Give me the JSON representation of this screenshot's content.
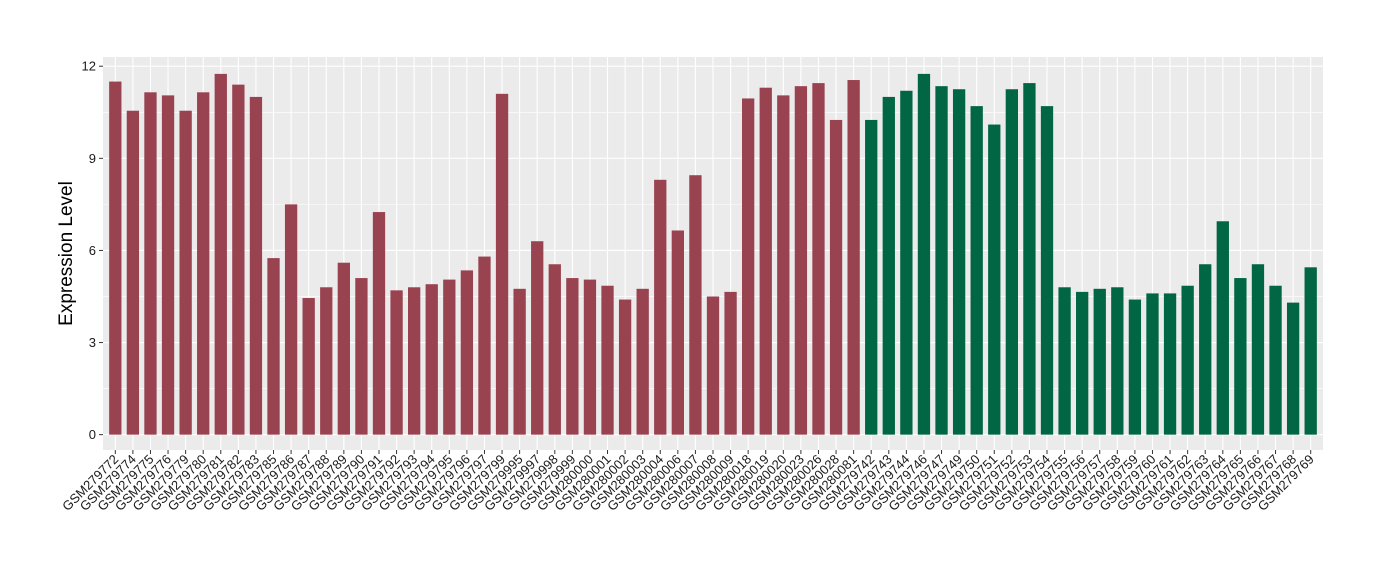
{
  "chart_data": {
    "type": "bar",
    "ylabel": "Expression Level",
    "xlabel": "",
    "ylim": [
      -0.5,
      12.3
    ],
    "yticks": [
      0,
      3,
      6,
      9,
      12
    ],
    "grid": true,
    "colors": {
      "group1": "#9a4350",
      "group2": "#006644",
      "panel": "#ebebeb",
      "grid": "#ffffff"
    },
    "categories": [
      "GSM279772",
      "GSM279774",
      "GSM279775",
      "GSM279776",
      "GSM279779",
      "GSM279780",
      "GSM279781",
      "GSM279782",
      "GSM279783",
      "GSM279785",
      "GSM279786",
      "GSM279787",
      "GSM279788",
      "GSM279789",
      "GSM279790",
      "GSM279791",
      "GSM279792",
      "GSM279793",
      "GSM279794",
      "GSM279795",
      "GSM279796",
      "GSM279797",
      "GSM279799",
      "GSM279995",
      "GSM279997",
      "GSM279998",
      "GSM279999",
      "GSM280000",
      "GSM280001",
      "GSM280002",
      "GSM280003",
      "GSM280004",
      "GSM280006",
      "GSM280007",
      "GSM280008",
      "GSM280009",
      "GSM280018",
      "GSM280019",
      "GSM280020",
      "GSM280023",
      "GSM280026",
      "GSM280028",
      "GSM280081",
      "GSM279742",
      "GSM279743",
      "GSM279744",
      "GSM279746",
      "GSM279747",
      "GSM279749",
      "GSM279750",
      "GSM279751",
      "GSM279752",
      "GSM279753",
      "GSM279754",
      "GSM279755",
      "GSM279756",
      "GSM279757",
      "GSM279758",
      "GSM279759",
      "GSM279760",
      "GSM279761",
      "GSM279762",
      "GSM279763",
      "GSM279764",
      "GSM279765",
      "GSM279766",
      "GSM279767",
      "GSM279768",
      "GSM279769"
    ],
    "values": [
      11.5,
      10.55,
      11.15,
      11.05,
      10.55,
      11.15,
      11.75,
      11.4,
      11.0,
      5.75,
      7.5,
      4.45,
      4.8,
      5.6,
      5.1,
      7.25,
      4.7,
      4.8,
      4.9,
      5.05,
      5.35,
      5.8,
      11.1,
      4.75,
      6.3,
      5.55,
      5.1,
      5.05,
      4.85,
      4.4,
      4.75,
      8.3,
      6.65,
      8.45,
      4.5,
      4.65,
      10.95,
      11.3,
      11.05,
      11.35,
      11.45,
      10.25,
      11.55,
      10.25,
      11.0,
      11.2,
      11.75,
      11.35,
      11.25,
      10.7,
      10.1,
      11.25,
      11.45,
      10.7,
      4.8,
      4.65,
      4.75,
      4.8,
      4.4,
      4.6,
      4.6,
      4.85,
      5.55,
      6.95,
      5.1,
      5.55,
      4.85,
      4.3,
      5.45
    ],
    "groups": [
      1,
      1,
      1,
      1,
      1,
      1,
      1,
      1,
      1,
      1,
      1,
      1,
      1,
      1,
      1,
      1,
      1,
      1,
      1,
      1,
      1,
      1,
      1,
      1,
      1,
      1,
      1,
      1,
      1,
      1,
      1,
      1,
      1,
      1,
      1,
      1,
      1,
      1,
      1,
      1,
      1,
      1,
      1,
      2,
      2,
      2,
      2,
      2,
      2,
      2,
      2,
      2,
      2,
      2,
      2,
      2,
      2,
      2,
      2,
      2,
      2,
      2,
      2,
      2,
      2,
      2,
      2,
      2,
      2
    ]
  }
}
